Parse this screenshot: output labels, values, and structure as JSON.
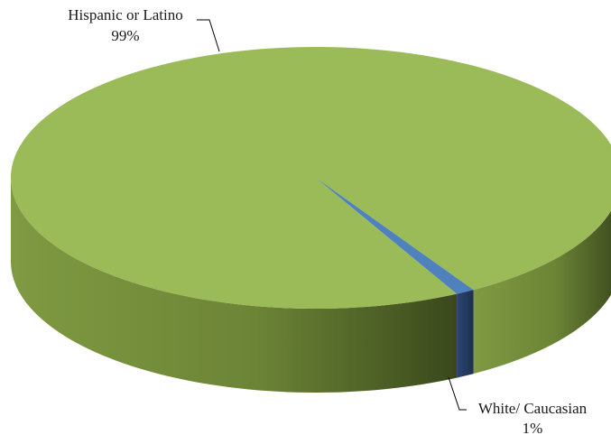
{
  "chart_data": {
    "type": "pie",
    "style": "3d",
    "title": "",
    "legend": "none",
    "slices": [
      {
        "label": "Hispanic or Latino",
        "value": 99,
        "value_label": "99%",
        "color": "#9bbb59"
      },
      {
        "label": "White/ Caucasian",
        "value": 1,
        "value_label": "1%",
        "color": "#4f81bd"
      }
    ]
  }
}
